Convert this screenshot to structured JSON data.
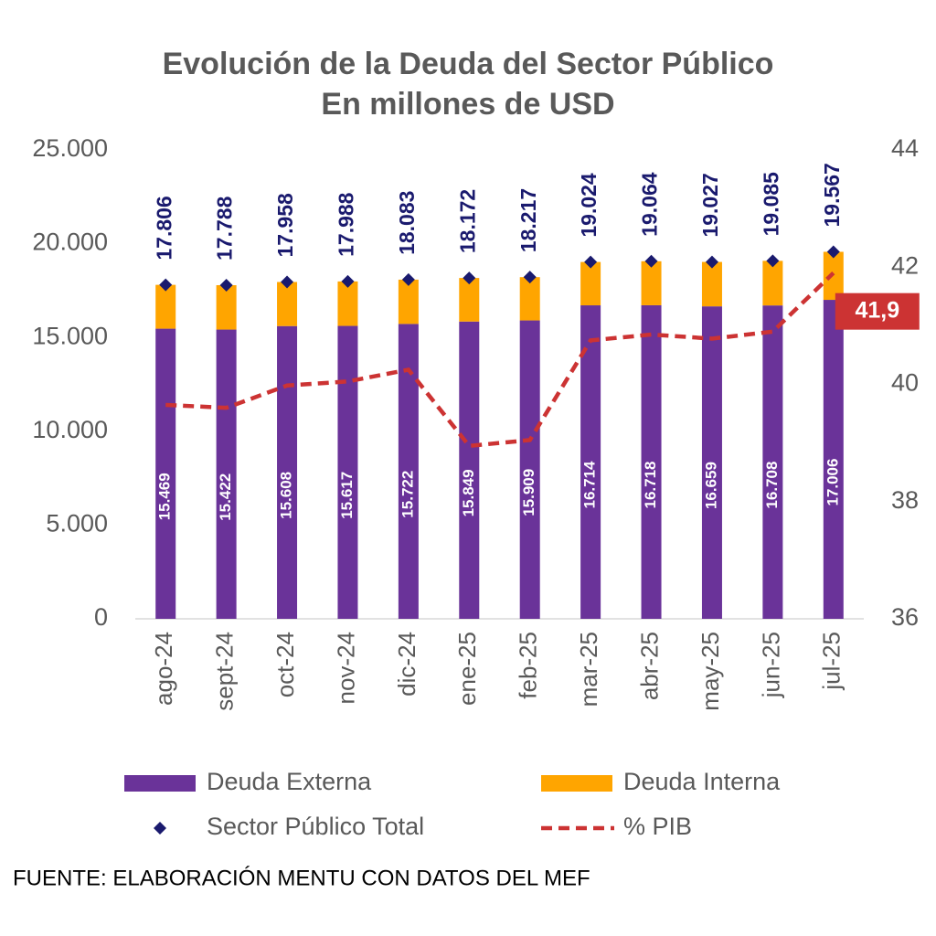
{
  "chart_data": {
    "type": "bar",
    "stacked": true,
    "title": "Evolución de la Deuda del Sector Público",
    "subtitle": "En millones de USD",
    "categories": [
      "ago-24",
      "sept-24",
      "oct-24",
      "nov-24",
      "dic-24",
      "ene-25",
      "feb-25",
      "mar-25",
      "abr-25",
      "may-25",
      "jun-25",
      "jul-25"
    ],
    "series": [
      {
        "name": "Deuda Externa",
        "color": "#6a3399",
        "values": [
          15469,
          15422,
          15608,
          15617,
          15722,
          15849,
          15909,
          16714,
          16718,
          16659,
          16708,
          17006
        ],
        "value_labels": [
          "15.469",
          "15.422",
          "15.608",
          "15.617",
          "15.722",
          "15.849",
          "15.909",
          "16.714",
          "16.718",
          "16.659",
          "16.708",
          "17.006"
        ]
      },
      {
        "name": "Deuda Interna",
        "color": "#ffa500",
        "values": [
          2337,
          2366,
          2350,
          2371,
          2361,
          2323,
          2308,
          2310,
          2346,
          2368,
          2377,
          2561
        ]
      },
      {
        "name": "Sector Público Total",
        "type": "scatter",
        "color": "#1a1a6e",
        "values": [
          17806,
          17788,
          17958,
          17988,
          18083,
          18172,
          18217,
          19024,
          19064,
          19027,
          19085,
          19567
        ],
        "value_labels": [
          "17.806",
          "17.788",
          "17.958",
          "17.988",
          "18.083",
          "18.172",
          "18.217",
          "19.024",
          "19.064",
          "19.027",
          "19.085",
          "19.567"
        ]
      },
      {
        "name": "% PIB",
        "type": "line",
        "axis": "y2",
        "color": "#cc3333",
        "values": [
          39.65,
          39.6,
          39.98,
          40.05,
          40.25,
          38.95,
          39.05,
          40.75,
          40.85,
          40.78,
          40.9,
          41.9
        ],
        "value_labels": [
          null,
          null,
          null,
          null,
          null,
          null,
          null,
          null,
          null,
          null,
          null,
          "41,9"
        ]
      }
    ],
    "ylim": [
      0,
      25000
    ],
    "yticks": [
      0,
      {
        "value": 5000,
        "label": "5.000"
      },
      {
        "value": 10000,
        "label": "10.000"
      },
      {
        "value": 15000,
        "label": "15.000"
      },
      {
        "value": 20000,
        "label": "20.000"
      },
      {
        "value": 25000,
        "label": "25.000"
      }
    ],
    "y2lim": [
      36,
      44
    ],
    "y2ticks": [
      36,
      38,
      40,
      42,
      44
    ],
    "legend": "bottom",
    "source": "FUENTE: ELABORACIÓN MENTU CON DATOS DEL MEF"
  }
}
